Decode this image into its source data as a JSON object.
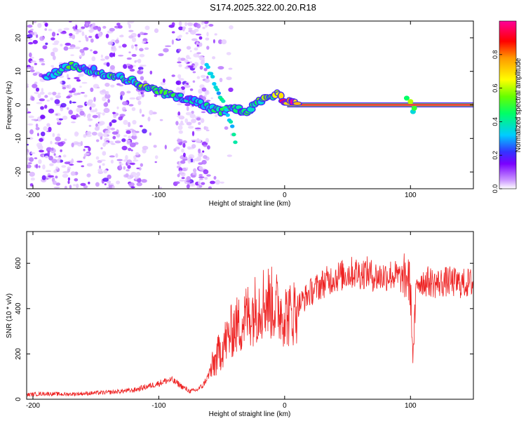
{
  "figure_title": "S174.2025.322.00.20.R18",
  "chart_data": [
    {
      "type": "heatmap",
      "xlabel": "Height of straight line (km)",
      "ylabel": "Frequency (Hz)",
      "xlim": [
        -205,
        150
      ],
      "ylim": [
        -25,
        25
      ],
      "xticks": [
        -200,
        -100,
        0,
        100
      ],
      "yticks": [
        -20,
        -10,
        0,
        10,
        20
      ],
      "colorbar": {
        "label": "Normalized spectral amplitude",
        "range": [
          0,
          1
        ],
        "ticks": [
          "0.0",
          "0.2",
          "0.4",
          "0.6",
          "0.8"
        ],
        "colors": [
          "#ffffff",
          "#cc99ff",
          "#7a00ff",
          "#3333ff",
          "#00ccff",
          "#00ff66",
          "#66ff00",
          "#ffff00",
          "#ff9900",
          "#ff0000",
          "#ff0099"
        ]
      },
      "ridge": {
        "x": [
          -190,
          -180,
          -170,
          -160,
          -150,
          -140,
          -130,
          -120,
          -110,
          -100,
          -90,
          -80,
          -70,
          -60,
          -50,
          -40,
          -30,
          -20,
          -10,
          -5,
          0,
          10,
          30,
          60,
          90,
          100,
          110,
          150
        ],
        "y": [
          8,
          10,
          12,
          11,
          10,
          9,
          8,
          7,
          5,
          4,
          3,
          2,
          1,
          -1,
          -2,
          -1,
          -2,
          1,
          2,
          4,
          1,
          0,
          0,
          0,
          0,
          1,
          0,
          0
        ],
        "amplitude": [
          0.3,
          0.4,
          0.45,
          0.35,
          0.4,
          0.45,
          0.4,
          0.45,
          0.5,
          0.5,
          0.45,
          0.35,
          0.35,
          0.4,
          0.4,
          0.45,
          0.45,
          0.5,
          0.5,
          0.7,
          0.9,
          0.95,
          0.95,
          0.95,
          0.95,
          0.7,
          0.95,
          0.95
        ]
      },
      "secondary_ridge": {
        "x": [
          -62,
          -55,
          -48,
          -42,
          -38
        ],
        "y": [
          12,
          6,
          0,
          -6,
          -13
        ],
        "amplitude": [
          0.3,
          0.35,
          0.35,
          0.35,
          0.3
        ]
      }
    },
    {
      "type": "line",
      "xlabel": "Height of straight line (km)",
      "ylabel": "SNR (10 * v/v)",
      "xlim": [
        -205,
        150
      ],
      "ylim": [
        0,
        740
      ],
      "xticks": [
        -200,
        -100,
        0,
        100
      ],
      "yticks": [
        0,
        200,
        400,
        600
      ],
      "series": [
        {
          "name": "SNR",
          "color": "#ee2222",
          "x": [
            -205,
            -190,
            -175,
            -160,
            -150,
            -140,
            -130,
            -120,
            -110,
            -100,
            -95,
            -90,
            -85,
            -80,
            -75,
            -70,
            -65,
            -60,
            -55,
            -50,
            -45,
            -40,
            -35,
            -30,
            -25,
            -20,
            -15,
            -10,
            -5,
            0,
            5,
            10,
            15,
            20,
            25,
            30,
            35,
            40,
            45,
            50,
            55,
            60,
            65,
            70,
            75,
            80,
            85,
            90,
            95,
            98,
            100,
            102,
            104,
            106,
            110,
            115,
            120,
            130,
            140,
            150
          ],
          "y": [
            20,
            25,
            22,
            25,
            28,
            30,
            35,
            40,
            55,
            70,
            80,
            85,
            70,
            50,
            35,
            40,
            60,
            110,
            170,
            230,
            270,
            320,
            330,
            370,
            390,
            420,
            440,
            420,
            400,
            380,
            370,
            410,
            440,
            470,
            490,
            510,
            525,
            540,
            545,
            555,
            560,
            555,
            560,
            545,
            540,
            545,
            550,
            540,
            530,
            545,
            480,
            180,
            420,
            540,
            520,
            520,
            510,
            520,
            510,
            515
          ]
        }
      ]
    }
  ]
}
